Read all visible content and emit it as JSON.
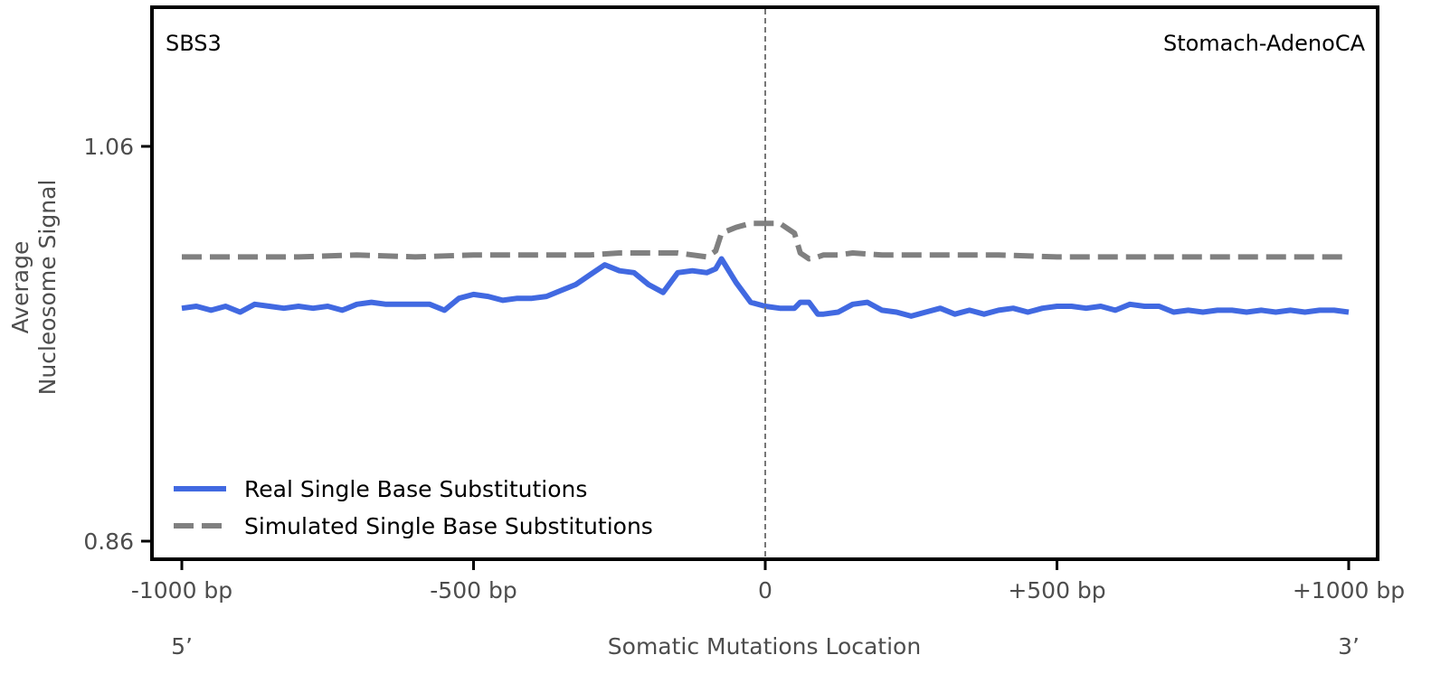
{
  "chart_data": {
    "type": "line",
    "title": "",
    "panel_label_left": "SBS3",
    "panel_label_right": "Stomach-AdenoCA",
    "xlabel": "Somatic Mutations Location",
    "x_end_left": "5’",
    "x_end_right": "3’",
    "ylabel_line1": "Average",
    "ylabel_line2": "Nucleosome Signal",
    "xlim": [
      -1000,
      1000
    ],
    "ylim": [
      0.86,
      1.09
    ],
    "xticks": [
      {
        "value": -1000,
        "label": "-1000 bp"
      },
      {
        "value": -500,
        "label": "-500 bp"
      },
      {
        "value": 0,
        "label": "0"
      },
      {
        "value": 500,
        "label": "+500 bp"
      },
      {
        "value": 1000,
        "label": "+1000 bp"
      }
    ],
    "yticks": [
      {
        "value": 1.06,
        "label": "1.06"
      },
      {
        "value": 0.86,
        "label": "0.86"
      }
    ],
    "vline_x": 0,
    "legend_position": "lower-left",
    "series": [
      {
        "name": "Real Single Base Substitutions",
        "color": "#4169E1",
        "style": "solid",
        "x": [
          -1000,
          -975,
          -950,
          -925,
          -900,
          -875,
          -850,
          -825,
          -800,
          -775,
          -750,
          -725,
          -700,
          -675,
          -650,
          -625,
          -600,
          -575,
          -550,
          -525,
          -500,
          -475,
          -450,
          -425,
          -400,
          -375,
          -350,
          -325,
          -300,
          -275,
          -250,
          -225,
          -200,
          -175,
          -150,
          -125,
          -100,
          -85,
          -75,
          -50,
          -25,
          0,
          25,
          50,
          60,
          75,
          90,
          100,
          125,
          150,
          175,
          200,
          225,
          250,
          275,
          300,
          325,
          350,
          375,
          400,
          425,
          450,
          475,
          500,
          525,
          550,
          575,
          600,
          625,
          650,
          675,
          700,
          725,
          750,
          775,
          800,
          825,
          850,
          875,
          900,
          925,
          950,
          975,
          1000
        ],
        "values": [
          0.978,
          0.979,
          0.977,
          0.979,
          0.976,
          0.98,
          0.979,
          0.978,
          0.979,
          0.978,
          0.979,
          0.977,
          0.98,
          0.981,
          0.98,
          0.98,
          0.98,
          0.98,
          0.977,
          0.983,
          0.985,
          0.984,
          0.982,
          0.983,
          0.983,
          0.984,
          0.987,
          0.99,
          0.995,
          1.0,
          0.997,
          0.996,
          0.99,
          0.986,
          0.996,
          0.997,
          0.996,
          0.998,
          1.003,
          0.991,
          0.981,
          0.979,
          0.978,
          0.978,
          0.981,
          0.981,
          0.975,
          0.975,
          0.976,
          0.98,
          0.981,
          0.977,
          0.976,
          0.974,
          0.976,
          0.978,
          0.975,
          0.977,
          0.975,
          0.977,
          0.978,
          0.976,
          0.978,
          0.979,
          0.979,
          0.978,
          0.979,
          0.977,
          0.98,
          0.979,
          0.979,
          0.976,
          0.977,
          0.976,
          0.977,
          0.977,
          0.976,
          0.977,
          0.976,
          0.977,
          0.976,
          0.977,
          0.977,
          0.976
        ]
      },
      {
        "name": "Simulated Single Base Substitutions",
        "color": "#808080",
        "style": "dashed",
        "x": [
          -1000,
          -900,
          -800,
          -700,
          -600,
          -500,
          -400,
          -300,
          -250,
          -200,
          -150,
          -100,
          -85,
          -75,
          -50,
          -25,
          0,
          25,
          50,
          60,
          75,
          90,
          100,
          125,
          150,
          200,
          250,
          300,
          400,
          500,
          600,
          700,
          800,
          900,
          1000
        ],
        "values": [
          1.004,
          1.004,
          1.004,
          1.005,
          1.004,
          1.005,
          1.005,
          1.005,
          1.006,
          1.006,
          1.006,
          1.004,
          1.007,
          1.016,
          1.019,
          1.021,
          1.021,
          1.021,
          1.016,
          1.006,
          1.003,
          1.004,
          1.005,
          1.005,
          1.006,
          1.005,
          1.005,
          1.005,
          1.005,
          1.004,
          1.004,
          1.004,
          1.004,
          1.004,
          1.004
        ]
      }
    ]
  }
}
